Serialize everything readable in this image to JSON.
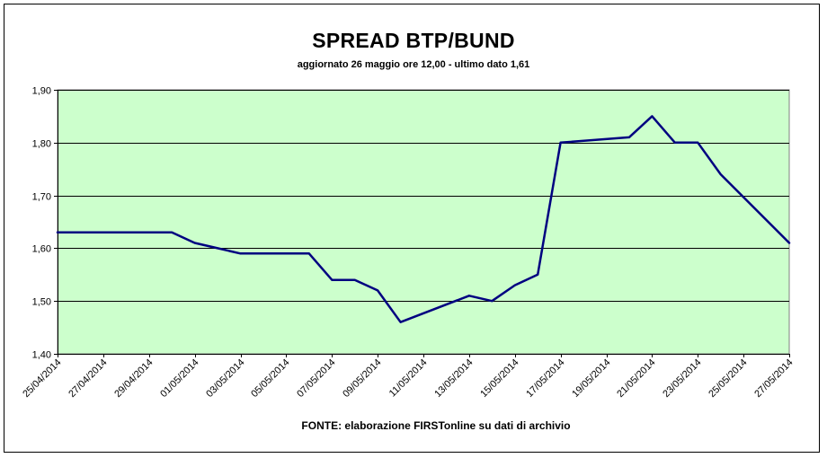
{
  "chart_data": {
    "type": "line",
    "title": "SPREAD BTP/BUND",
    "subtitle": "aggiornato 26 maggio ore 12,00 - ultimo dato 1,61",
    "source_note": "FONTE: elaborazione FIRSTonline su dati di archivio",
    "xlabel": "",
    "ylabel": "",
    "ylim": [
      1.4,
      1.9
    ],
    "yticks": [
      "1,40",
      "1,50",
      "1,60",
      "1,70",
      "1,80",
      "1,90"
    ],
    "yticks_values": [
      1.4,
      1.5,
      1.6,
      1.7,
      1.8,
      1.9
    ],
    "xlim": [
      "2014-04-25",
      "2014-05-27"
    ],
    "xticks": [
      "25/04/2014",
      "27/04/2014",
      "29/04/2014",
      "01/05/2014",
      "03/05/2014",
      "05/05/2014",
      "07/05/2014",
      "09/05/2014",
      "11/05/2014",
      "13/05/2014",
      "15/05/2014",
      "17/05/2014",
      "19/05/2014",
      "21/05/2014",
      "23/05/2014",
      "25/05/2014",
      "27/05/2014"
    ],
    "grid": "horizontal",
    "legend": "none",
    "colors": {
      "plot_background": "#ccffcc",
      "line": "#000080",
      "grid": "#000000"
    },
    "series": [
      {
        "x": [
          "2014-04-25",
          "2014-04-29",
          "2014-04-30",
          "2014-05-01",
          "2014-05-02",
          "2014-05-03",
          "2014-05-05",
          "2014-05-06",
          "2014-05-07",
          "2014-05-08",
          "2014-05-09",
          "2014-05-10",
          "2014-05-13",
          "2014-05-14",
          "2014-05-15",
          "2014-05-16",
          "2014-05-17",
          "2014-05-20",
          "2014-05-21",
          "2014-05-22",
          "2014-05-23",
          "2014-05-24",
          "2014-05-27"
        ],
        "values": [
          1.63,
          1.63,
          1.63,
          1.61,
          1.6,
          1.59,
          1.59,
          1.59,
          1.54,
          1.54,
          1.52,
          1.46,
          1.51,
          1.5,
          1.53,
          1.55,
          1.8,
          1.81,
          1.85,
          1.8,
          1.8,
          1.74,
          1.61
        ]
      }
    ]
  }
}
